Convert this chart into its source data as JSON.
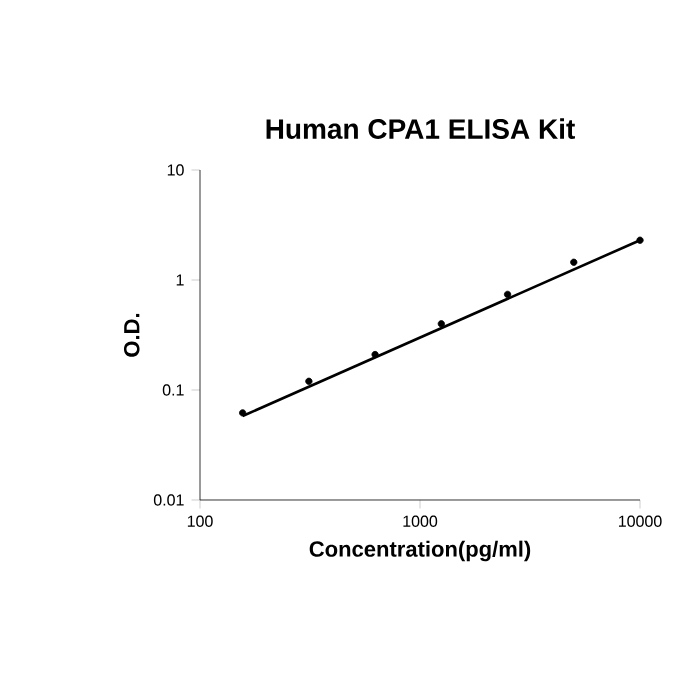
{
  "chart_data": {
    "type": "scatter",
    "title": "Human CPA1 ELISA Kit",
    "xlabel": "Concentration(pg/ml)",
    "ylabel": "O.D.",
    "log": "xy",
    "xlim": [
      100,
      10000
    ],
    "ylim": [
      0.01,
      10
    ],
    "xticks": [
      100,
      1000,
      10000
    ],
    "yticks": [
      0.01,
      0.1,
      1,
      10
    ],
    "grid": false,
    "series": [
      {
        "color": "#000000",
        "marker": "circle",
        "x": [
          156.25,
          312.5,
          625,
          1250,
          2500,
          5000,
          10000
        ],
        "values": [
          0.062,
          0.12,
          0.21,
          0.4,
          0.74,
          1.45,
          2.3
        ]
      },
      {
        "type": "line",
        "color": "#000000",
        "marker": "none",
        "line_style": "solid",
        "x": [
          156.25,
          10000
        ],
        "values": [
          0.058,
          2.3
        ]
      }
    ]
  }
}
